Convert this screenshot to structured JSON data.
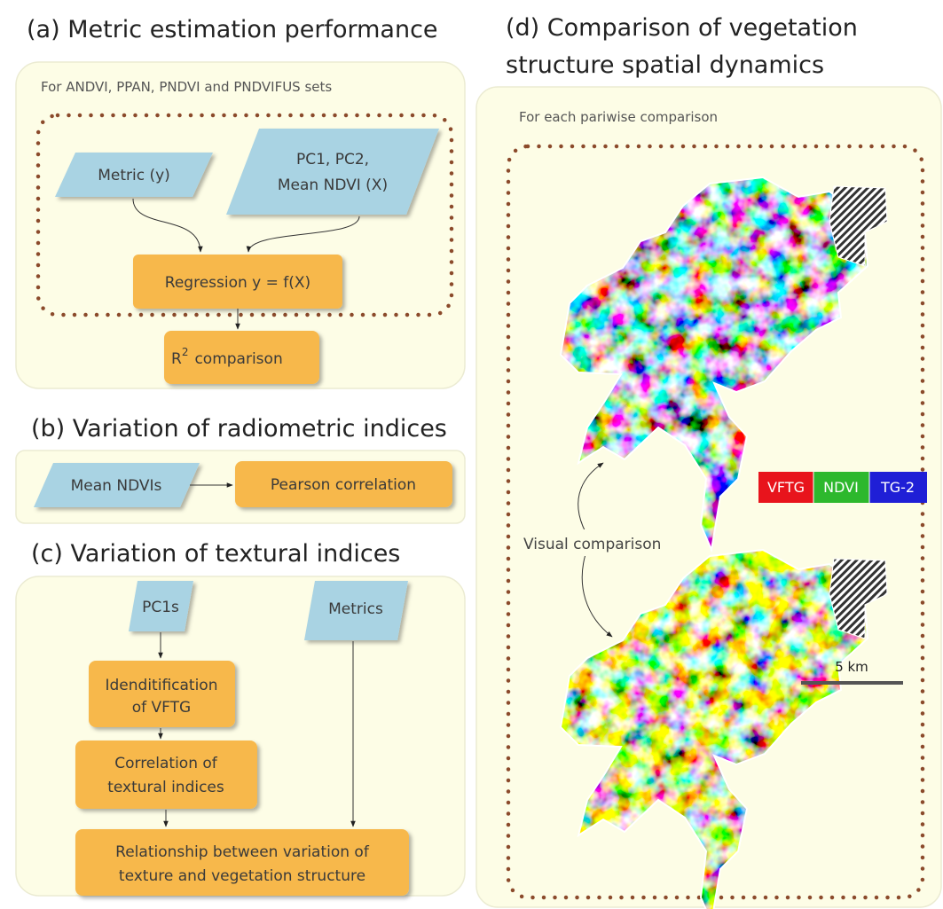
{
  "panel_a": {
    "title": "(a) Metric estimation performance",
    "note": "For ANDVI, PPAN, PNDVI and PNDVIFUS sets",
    "metric_input": [
      "Metric (y)"
    ],
    "predictor_input": [
      "PC1, PC2,",
      "Mean NDVI (X)"
    ],
    "regression": [
      "Regression y = f(X)"
    ],
    "output": {
      "base": "R",
      "superscript": "2",
      "text": "comparison"
    }
  },
  "panel_b": {
    "title": "(b) Variation of radiometric indices",
    "input": "Mean NDVIs",
    "process": "Pearson correlation"
  },
  "panel_c": {
    "title": "(c) Variation of textural indices",
    "input_pc": "PC1s",
    "input_metrics": "Metrics",
    "identification": [
      "Idenditification",
      "of VFTG"
    ],
    "correlation": [
      "Correlation of",
      "textural indices"
    ],
    "relationship": [
      "Relationship between variation of",
      "texture and vegetation structure"
    ]
  },
  "panel_d": {
    "title": [
      "(d) Comparison of vegetation",
      "structure spatial dynamics"
    ],
    "note": "For each pariwise comparison",
    "legend": [
      "VFTG",
      "NDVI",
      "TG-2"
    ],
    "comparison_label": "Visual comparison",
    "scale_label": "5 km"
  }
}
